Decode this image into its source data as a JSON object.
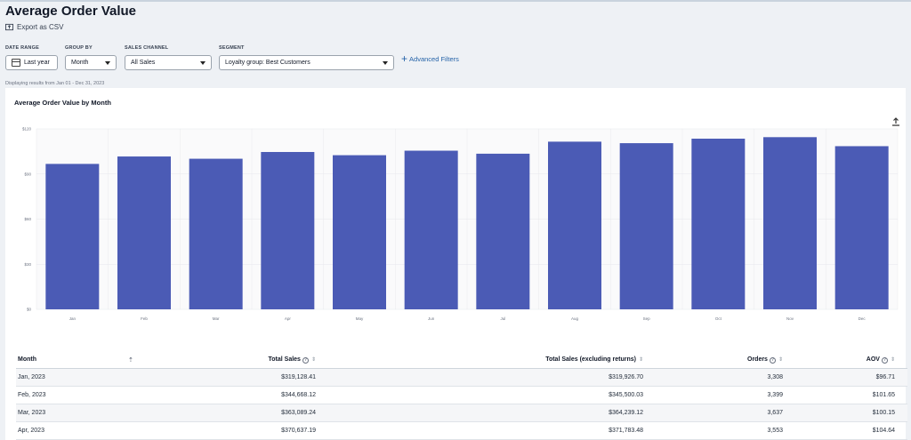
{
  "page": {
    "title": "Average Order Value",
    "export_label": "Export as CSV",
    "displaying": "Displaying results from Jan 01 - Dec 31, 2023"
  },
  "filters": {
    "date_range": {
      "label": "DATE RANGE",
      "value": "Last year"
    },
    "group_by": {
      "label": "GROUP BY",
      "value": "Month"
    },
    "sales_channel": {
      "label": "SALES CHANNEL",
      "value": "All Sales"
    },
    "segment": {
      "label": "SEGMENT",
      "value": "Loyalty group: Best Customers"
    },
    "advanced_label": "Advanced Filters"
  },
  "colors": {
    "bar": "#4b5bb5",
    "accent": "#2563a8"
  },
  "chart_data": {
    "type": "bar",
    "title": "Average Order Value by Month",
    "categories": [
      "Jan",
      "Feb",
      "Mar",
      "Apr",
      "May",
      "Jun",
      "Jul",
      "Aug",
      "Sep",
      "Oct",
      "Nov",
      "Dec"
    ],
    "values": [
      96.71,
      101.65,
      100.15,
      104.64,
      102.5,
      105.5,
      103.5,
      111.5,
      110.5,
      113.5,
      114.5,
      108.5
    ],
    "yticks": [
      "$0",
      "$30",
      "$60",
      "$90",
      "$120"
    ],
    "ylim": [
      0,
      120
    ],
    "grid": true,
    "xlabel": "",
    "ylabel": ""
  },
  "table": {
    "headers": {
      "month": "Month",
      "total_sales": "Total Sales",
      "total_sales_excl": "Total Sales (excluding returns)",
      "orders": "Orders",
      "aov": "AOV"
    },
    "rows": [
      {
        "month": "Jan, 2023",
        "total_sales": "$319,128.41",
        "total_sales_excl": "$319,926.70",
        "orders": "3,308",
        "aov": "$96.71"
      },
      {
        "month": "Feb, 2023",
        "total_sales": "$344,668.12",
        "total_sales_excl": "$345,500.03",
        "orders": "3,399",
        "aov": "$101.65"
      },
      {
        "month": "Mar, 2023",
        "total_sales": "$363,089.24",
        "total_sales_excl": "$364,239.12",
        "orders": "3,637",
        "aov": "$100.15"
      },
      {
        "month": "Apr, 2023",
        "total_sales": "$370,637.19",
        "total_sales_excl": "$371,783.48",
        "orders": "3,553",
        "aov": "$104.64"
      }
    ]
  }
}
